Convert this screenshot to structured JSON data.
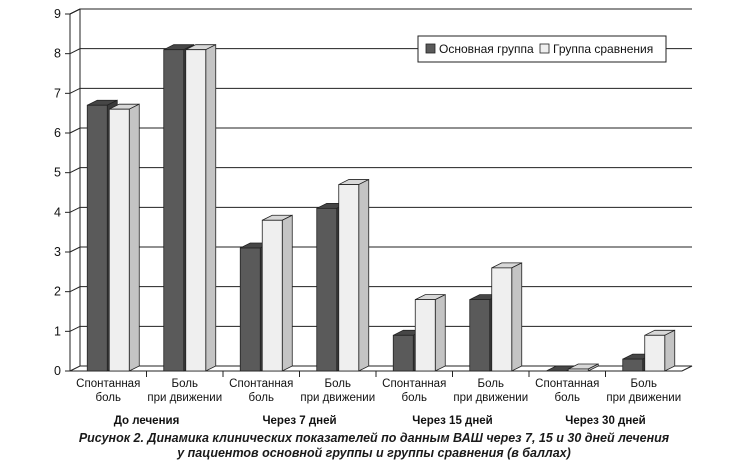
{
  "chart_data": {
    "type": "bar",
    "title": "",
    "xlabel": "",
    "ylabel": "",
    "ylim": [
      0,
      9
    ],
    "yticks": [
      0,
      1,
      2,
      3,
      4,
      5,
      6,
      7,
      8,
      9
    ],
    "grid": true,
    "legend_position": "top-right",
    "groups": [
      "До лечения",
      "Через 7 дней",
      "Через 15 дней",
      "Через 30 дней"
    ],
    "categories": [
      {
        "line1": "Спонтанная",
        "line2": "боль"
      },
      {
        "line1": "Боль",
        "line2": "при движении"
      },
      {
        "line1": "Спонтанная",
        "line2": "боль"
      },
      {
        "line1": "Боль",
        "line2": "при движении"
      },
      {
        "line1": "Спонтанная",
        "line2": "боль"
      },
      {
        "line1": "Боль",
        "line2": "при движении"
      },
      {
        "line1": "Спонтанная",
        "line2": "боль"
      },
      {
        "line1": "Боль",
        "line2": "при движении"
      }
    ],
    "series": [
      {
        "name": "Основная группа",
        "color": "#5a5a5a",
        "values": [
          6.7,
          8.1,
          3.1,
          4.1,
          0.9,
          1.8,
          0.0,
          0.3
        ]
      },
      {
        "name": "Группа сравнения",
        "color": "#efefef",
        "values": [
          6.6,
          8.1,
          3.8,
          4.7,
          1.8,
          2.6,
          0.05,
          0.9
        ]
      }
    ]
  },
  "caption": {
    "line1": "Рисунок 2. Динамика клинических показателей по данным ВАШ через 7, 15 и 30 дней лечения",
    "line2": "у пациентов основной группы и группы сравнения (в баллах)"
  }
}
